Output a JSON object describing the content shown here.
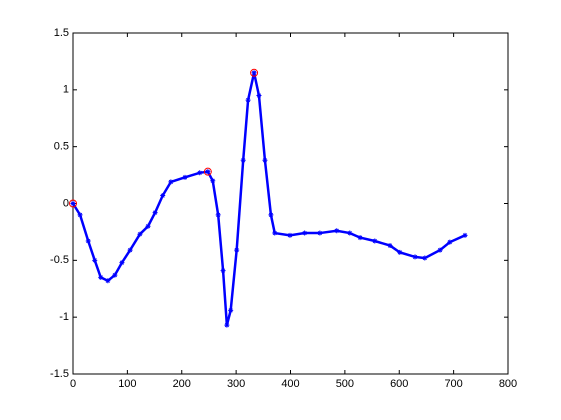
{
  "chart_data": {
    "type": "line",
    "xlim": [
      0,
      800
    ],
    "xticks": [
      0,
      100,
      200,
      300,
      400,
      500,
      600,
      700,
      800
    ],
    "ylim": [
      -1.5,
      1.5
    ],
    "yticks": [
      -1.5,
      -1,
      -0.5,
      0,
      0.5,
      1,
      1.5
    ],
    "series": [
      {
        "color": "#0000ff",
        "marker": "star",
        "x": [
          0,
          13,
          28,
          40,
          51,
          64,
          77,
          90,
          105,
          123,
          138,
          151,
          165,
          180,
          206,
          233,
          248,
          257,
          267,
          276,
          283,
          290,
          301,
          313,
          322,
          333,
          342,
          353,
          364,
          371,
          399,
          426,
          454,
          485,
          509,
          528,
          555,
          583,
          601,
          629,
          647,
          675,
          693,
          721
        ],
        "values": [
          0,
          -0.1,
          -0.33,
          -0.5,
          -0.65,
          -0.68,
          -0.63,
          -0.52,
          -0.41,
          -0.27,
          -0.2,
          -0.08,
          0.07,
          0.19,
          0.23,
          0.27,
          0.28,
          0.2,
          -0.1,
          -0.59,
          -1.07,
          -0.94,
          -0.41,
          0.38,
          0.91,
          1.15,
          0.95,
          0.38,
          -0.1,
          -0.26,
          -0.28,
          -0.26,
          -0.26,
          -0.24,
          -0.26,
          -0.3,
          -0.33,
          -0.37,
          -0.43,
          -0.47,
          -0.48,
          -0.41,
          -0.34,
          -0.28
        ]
      },
      {
        "color": "#ff0000",
        "marker": "circle",
        "x": [
          0,
          248,
          333
        ],
        "values": [
          0,
          0.28,
          1.15
        ]
      }
    ]
  }
}
